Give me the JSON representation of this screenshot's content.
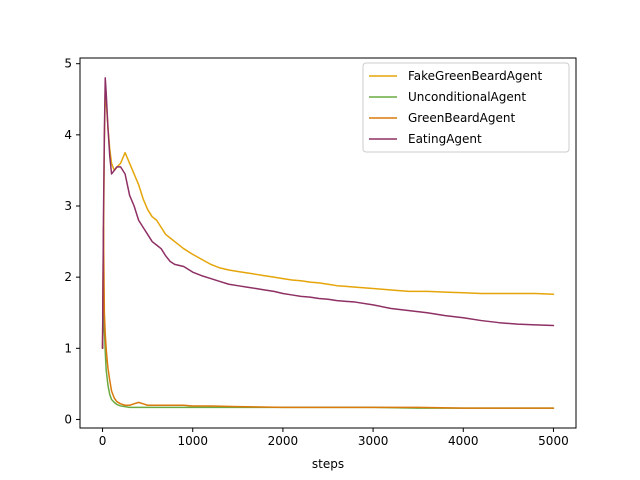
{
  "chart_data": {
    "type": "line",
    "xlabel": "steps",
    "ylabel": "",
    "xlim": [
      -250,
      5250
    ],
    "ylim": [
      -0.12,
      5.08
    ],
    "xticks": [
      0,
      1000,
      2000,
      3000,
      4000,
      5000
    ],
    "yticks": [
      0,
      1,
      2,
      3,
      4,
      5
    ],
    "grid": false,
    "legend_position": "top-right",
    "series": [
      {
        "name": "FakeGreenBeardAgent",
        "color": "#e5a50a",
        "x": [
          0,
          10,
          20,
          30,
          40,
          60,
          80,
          100,
          130,
          160,
          200,
          250,
          300,
          350,
          400,
          450,
          500,
          550,
          600,
          650,
          700,
          750,
          800,
          900,
          1000,
          1100,
          1200,
          1300,
          1400,
          1500,
          1600,
          1700,
          1800,
          1900,
          2000,
          2100,
          2200,
          2300,
          2400,
          2500,
          2600,
          2700,
          2800,
          3000,
          3200,
          3400,
          3600,
          3800,
          4000,
          4200,
          4400,
          4600,
          4800,
          5000
        ],
        "y": [
          1.0,
          2.4,
          3.9,
          4.6,
          4.5,
          4.1,
          3.8,
          3.6,
          3.5,
          3.55,
          3.6,
          3.75,
          3.6,
          3.45,
          3.3,
          3.1,
          2.95,
          2.85,
          2.8,
          2.7,
          2.6,
          2.55,
          2.5,
          2.4,
          2.32,
          2.25,
          2.18,
          2.13,
          2.1,
          2.08,
          2.06,
          2.04,
          2.02,
          2.0,
          1.98,
          1.96,
          1.95,
          1.93,
          1.92,
          1.9,
          1.88,
          1.87,
          1.86,
          1.84,
          1.82,
          1.8,
          1.8,
          1.79,
          1.78,
          1.77,
          1.77,
          1.77,
          1.77,
          1.76
        ]
      },
      {
        "name": "UnconditionalAgent",
        "color": "#6aaa41",
        "x": [
          0,
          10,
          20,
          30,
          40,
          60,
          80,
          100,
          130,
          160,
          200,
          250,
          300,
          400,
          500,
          600,
          800,
          1000,
          1500,
          2000,
          2500,
          3000,
          3500,
          4000,
          4500,
          5000
        ],
        "y": [
          1.0,
          1.5,
          1.3,
          0.95,
          0.7,
          0.48,
          0.35,
          0.28,
          0.24,
          0.21,
          0.19,
          0.18,
          0.17,
          0.17,
          0.17,
          0.17,
          0.17,
          0.17,
          0.17,
          0.17,
          0.17,
          0.17,
          0.16,
          0.16,
          0.16,
          0.16
        ]
      },
      {
        "name": "GreenBeardAgent",
        "color": "#d97a0c",
        "x": [
          0,
          10,
          20,
          30,
          40,
          50,
          60,
          80,
          100,
          130,
          160,
          200,
          250,
          300,
          350,
          400,
          450,
          500,
          600,
          700,
          800,
          900,
          1000,
          1200,
          1500,
          2000,
          2500,
          3000,
          3500,
          4000,
          4500,
          5000
        ],
        "y": [
          1.0,
          2.7,
          1.5,
          1.2,
          1.0,
          0.85,
          0.72,
          0.55,
          0.4,
          0.3,
          0.25,
          0.22,
          0.2,
          0.2,
          0.22,
          0.24,
          0.22,
          0.2,
          0.2,
          0.2,
          0.2,
          0.2,
          0.19,
          0.19,
          0.18,
          0.17,
          0.17,
          0.17,
          0.17,
          0.16,
          0.16,
          0.16
        ]
      },
      {
        "name": "EatingAgent",
        "color": "#8e3064",
        "x": [
          0,
          10,
          20,
          30,
          40,
          60,
          80,
          100,
          130,
          160,
          200,
          250,
          300,
          350,
          400,
          450,
          500,
          550,
          600,
          650,
          700,
          750,
          800,
          900,
          1000,
          1100,
          1200,
          1300,
          1400,
          1500,
          1600,
          1700,
          1800,
          1900,
          2000,
          2100,
          2200,
          2300,
          2400,
          2500,
          2600,
          2700,
          2800,
          3000,
          3200,
          3400,
          3600,
          3800,
          4000,
          4200,
          4400,
          4600,
          4800,
          5000
        ],
        "y": [
          1.0,
          2.8,
          4.0,
          4.8,
          4.6,
          4.1,
          3.7,
          3.45,
          3.5,
          3.55,
          3.55,
          3.45,
          3.15,
          3.0,
          2.8,
          2.7,
          2.6,
          2.5,
          2.45,
          2.4,
          2.3,
          2.22,
          2.18,
          2.15,
          2.07,
          2.02,
          1.98,
          1.94,
          1.9,
          1.88,
          1.86,
          1.84,
          1.82,
          1.8,
          1.77,
          1.75,
          1.73,
          1.72,
          1.7,
          1.69,
          1.67,
          1.66,
          1.65,
          1.61,
          1.56,
          1.53,
          1.5,
          1.46,
          1.43,
          1.39,
          1.36,
          1.34,
          1.33,
          1.32
        ]
      }
    ]
  }
}
